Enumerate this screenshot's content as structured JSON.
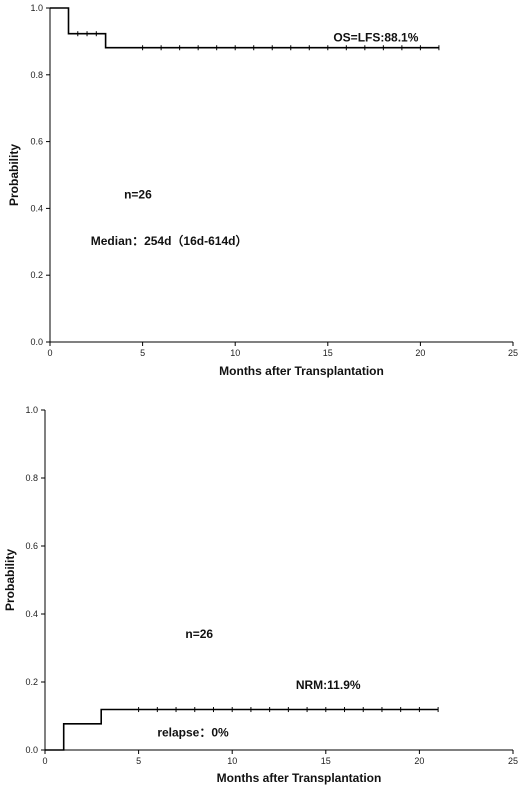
{
  "chart_data": [
    {
      "type": "line",
      "step": true,
      "xlabel": "Months after Transplantation",
      "ylabel": "Probability",
      "xlim": [
        0,
        25
      ],
      "ylim": [
        0,
        1.0
      ],
      "xticks": [
        "0",
        "5",
        "10",
        "15",
        "20",
        "25"
      ],
      "yticks": [
        "0.0",
        "0.2",
        "0.4",
        "0.6",
        "0.8",
        "1.0"
      ],
      "grid": false,
      "series": [
        {
          "x": [
            0,
            1,
            1,
            3,
            3,
            21
          ],
          "y": [
            1.0,
            1.0,
            0.923,
            0.923,
            0.881,
            0.881
          ],
          "censor_x": [
            1.5,
            2,
            2.5,
            5,
            6,
            7,
            8,
            9,
            10,
            11,
            12,
            13,
            14,
            15,
            16,
            17,
            18,
            19,
            20,
            21
          ],
          "color": "#000000"
        }
      ],
      "annotations": [
        {
          "text": "OS=LFS:88.1%",
          "x": 15.3,
          "y": 0.9
        },
        {
          "text": "n=26",
          "x": 4,
          "y": 0.43
        },
        {
          "text": "Median：254d（16d-614d）",
          "x": 2.2,
          "y": 0.29
        }
      ]
    },
    {
      "type": "line",
      "step": true,
      "xlabel": "Months after Transplantation",
      "ylabel": "Probability",
      "xlim": [
        0,
        25
      ],
      "ylim": [
        0,
        1.0
      ],
      "xticks": [
        "0",
        "5",
        "10",
        "15",
        "20",
        "25"
      ],
      "yticks": [
        "0.0",
        "0.2",
        "0.4",
        "0.6",
        "0.8",
        "1.0"
      ],
      "grid": false,
      "series": [
        {
          "x": [
            0,
            1,
            1,
            3,
            3,
            21
          ],
          "y": [
            0,
            0,
            0.077,
            0.077,
            0.119,
            0.119
          ],
          "censor_x": [
            5,
            6,
            7,
            8,
            9,
            10,
            11,
            12,
            13,
            14,
            15,
            16,
            17,
            18,
            19,
            20,
            21
          ],
          "color": "#000000"
        }
      ],
      "annotations": [
        {
          "text": "n=26",
          "x": 7.5,
          "y": 0.33
        },
        {
          "text": "NRM:11.9%",
          "x": 13.4,
          "y": 0.18
        },
        {
          "text": "relapse：0%",
          "x": 6.0,
          "y": 0.04
        }
      ]
    }
  ]
}
